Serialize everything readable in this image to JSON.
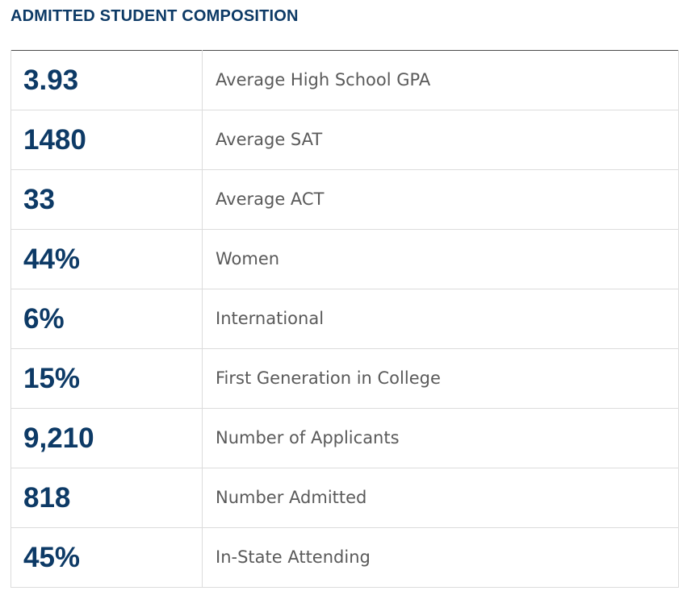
{
  "section": {
    "title": "ADMITTED STUDENT COMPOSITION"
  },
  "colors": {
    "accent": "#0d3a66",
    "label_text": "#5a5a5a",
    "row_border": "#dcdcdc"
  },
  "rows": [
    {
      "value": "3.93",
      "label": "Average High School GPA"
    },
    {
      "value": "1480",
      "label": "Average SAT"
    },
    {
      "value": "33",
      "label": "Average ACT"
    },
    {
      "value": "44%",
      "label": "Women"
    },
    {
      "value": "6%",
      "label": "International"
    },
    {
      "value": "15%",
      "label": "First Generation in College"
    },
    {
      "value": "9,210",
      "label": "Number of Applicants"
    },
    {
      "value": "818",
      "label": "Number Admitted"
    },
    {
      "value": "45%",
      "label": "In-State Attending"
    }
  ]
}
